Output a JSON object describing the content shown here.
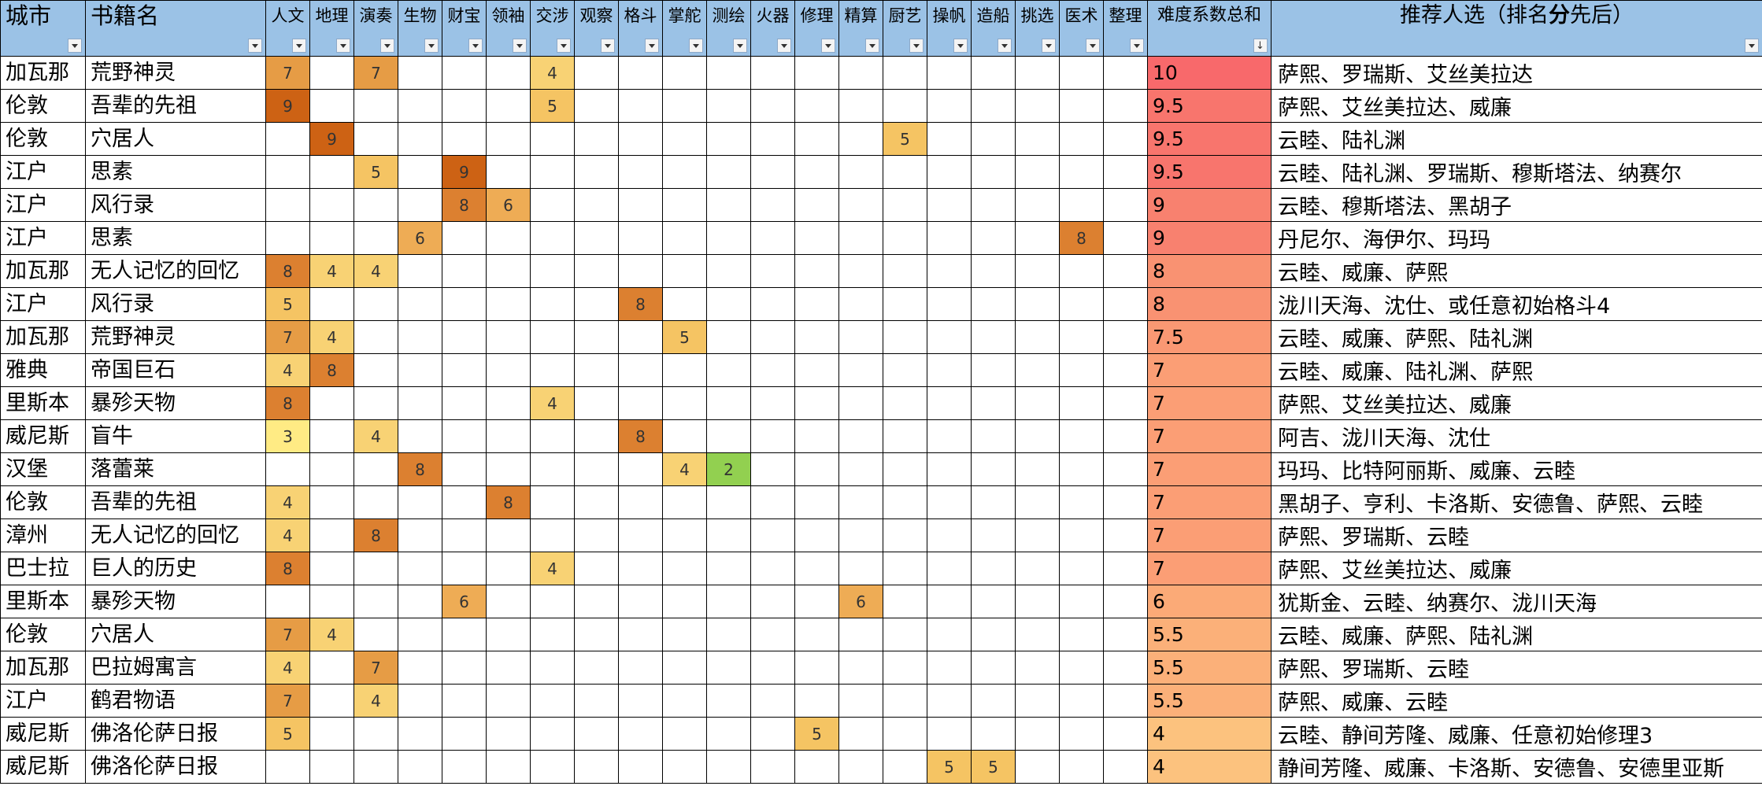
{
  "sheet": {
    "headers": {
      "city": "城市",
      "book": "书籍名",
      "skills": [
        "人文",
        "地理",
        "演奏",
        "生物",
        "财宝",
        "领袖",
        "交涉",
        "观察",
        "格斗",
        "掌舵",
        "测绘",
        "火器",
        "修理",
        "精算",
        "厨艺",
        "操帆",
        "造船",
        "挑选",
        "医术",
        "整理"
      ],
      "difficulty": "难度系数总和",
      "rec_prefix": "推荐人选（排名",
      "rec_bold": "分",
      "rec_suffix": "先后）"
    },
    "sorted_column": "difficulty",
    "rows": [
      {
        "city": "加瓦那",
        "book": "荒野神灵",
        "skills": {
          "人文": "7",
          "演奏": "7",
          "交涉": "4"
        },
        "difficulty": "10",
        "rec": "萨熙、罗瑞斯、艾丝美拉达"
      },
      {
        "city": "伦敦",
        "book": "吾辈的先祖",
        "skills": {
          "人文": "9",
          "交涉": "5"
        },
        "difficulty": "9.5",
        "rec": "萨熙、艾丝美拉达、威廉"
      },
      {
        "city": "伦敦",
        "book": "穴居人",
        "skills": {
          "地理": "9",
          "厨艺": "5"
        },
        "difficulty": "9.5",
        "rec": "云睦、陆礼渊"
      },
      {
        "city": "江户",
        "book": "思素",
        "skills": {
          "演奏": "5",
          "财宝": "9"
        },
        "difficulty": "9.5",
        "rec": "云睦、陆礼渊、罗瑞斯、穆斯塔法、纳赛尔"
      },
      {
        "city": "江户",
        "book": "风行录",
        "skills": {
          "财宝": "8",
          "领袖": "6"
        },
        "difficulty": "9",
        "rec": "云睦、穆斯塔法、黑胡子"
      },
      {
        "city": "江户",
        "book": "思素",
        "skills": {
          "生物": "6",
          "医术": "8"
        },
        "difficulty": "9",
        "rec": "丹尼尔、海伊尔、玛玛"
      },
      {
        "city": "加瓦那",
        "book": "无人记忆的回忆",
        "skills": {
          "人文": "8",
          "地理": "4",
          "演奏": "4"
        },
        "difficulty": "8",
        "rec": "云睦、威廉、萨熙"
      },
      {
        "city": "江户",
        "book": "风行录",
        "skills": {
          "人文": "5",
          "格斗": "8"
        },
        "difficulty": "8",
        "rec": "泷川天海、沈仕、或任意初始格斗4"
      },
      {
        "city": "加瓦那",
        "book": "荒野神灵",
        "skills": {
          "人文": "7",
          "地理": "4",
          "掌舵": "5"
        },
        "difficulty": "7.5",
        "rec": "云睦、威廉、萨熙、陆礼渊"
      },
      {
        "city": "雅典",
        "book": "帝国巨石",
        "skills": {
          "人文": "4",
          "地理": "8"
        },
        "difficulty": "7",
        "rec": "云睦、威廉、陆礼渊、萨熙"
      },
      {
        "city": "里斯本",
        "book": "暴殄天物",
        "skills": {
          "人文": "8",
          "交涉": "4"
        },
        "difficulty": "7",
        "rec": "萨熙、艾丝美拉达、威廉"
      },
      {
        "city": "威尼斯",
        "book": "盲牛",
        "skills": {
          "人文": "3",
          "演奏": "4",
          "格斗": "8"
        },
        "difficulty": "7",
        "rec": "阿吉、泷川天海、沈仕"
      },
      {
        "city": "汉堡",
        "book": "落蕾莱",
        "skills": {
          "生物": "8",
          "掌舵": "4",
          "测绘": "2"
        },
        "difficulty": "7",
        "rec": "玛玛、比特阿丽斯、威廉、云睦"
      },
      {
        "city": "伦敦",
        "book": "吾辈的先祖",
        "skills": {
          "人文": "4",
          "领袖": "8"
        },
        "difficulty": "7",
        "rec": "黑胡子、亨利、卡洛斯、安德鲁、萨熙、云睦"
      },
      {
        "city": "漳州",
        "book": "无人记忆的回忆",
        "skills": {
          "人文": "4",
          "演奏": "8"
        },
        "difficulty": "7",
        "rec": "萨熙、罗瑞斯、云睦"
      },
      {
        "city": "巴士拉",
        "book": "巨人的历史",
        "skills": {
          "人文": "8",
          "交涉": "4"
        },
        "difficulty": "7",
        "rec": "萨熙、艾丝美拉达、威廉"
      },
      {
        "city": "里斯本",
        "book": "暴殄天物",
        "skills": {
          "财宝": "6",
          "精算": "6"
        },
        "difficulty": "6",
        "rec": "犹斯金、云睦、纳赛尔、泷川天海"
      },
      {
        "city": "伦敦",
        "book": "穴居人",
        "skills": {
          "人文": "7",
          "地理": "4"
        },
        "difficulty": "5.5",
        "rec": "云睦、威廉、萨熙、陆礼渊"
      },
      {
        "city": "加瓦那",
        "book": "巴拉姆寓言",
        "skills": {
          "人文": "4",
          "演奏": "7"
        },
        "difficulty": "5.5",
        "rec": "萨熙、罗瑞斯、云睦"
      },
      {
        "city": "江户",
        "book": "鹤君物语",
        "skills": {
          "人文": "7",
          "演奏": "4"
        },
        "difficulty": "5.5",
        "rec": "萨熙、威廉、云睦"
      },
      {
        "city": "威尼斯",
        "book": "佛洛伦萨日报",
        "skills": {
          "人文": "5",
          "修理": "5"
        },
        "difficulty": "4",
        "rec": "云睦、静间芳隆、威廉、任意初始修理3"
      },
      {
        "city": "威尼斯",
        "book": "佛洛伦萨日报",
        "skills": {
          "操帆": "5",
          "造船": "5"
        },
        "difficulty": "4",
        "rec": "静间芳隆、威廉、卡洛斯、安德鲁、安德里亚斯"
      }
    ]
  },
  "colors": {
    "header_bg": "#9bc2e6",
    "grid_line": "#000000",
    "skill_2": "#92d050",
    "skill_3": "#ffeb84",
    "skill_4": "#f8d274",
    "skill_5": "#f5c463",
    "skill_6": "#eeac55",
    "skill_7": "#e69c45",
    "skill_8": "#dc8030",
    "skill_9": "#cd6214",
    "diff_10": "#f8696b",
    "diff_9_5": "#f8756d",
    "diff_9": "#f8816f",
    "diff_8": "#f99272",
    "diff_7_5": "#fa9873",
    "diff_7": "#fb9e75",
    "diff_6": "#fbaa77",
    "diff_5_5": "#fbb079",
    "diff_4": "#fcc27e"
  }
}
